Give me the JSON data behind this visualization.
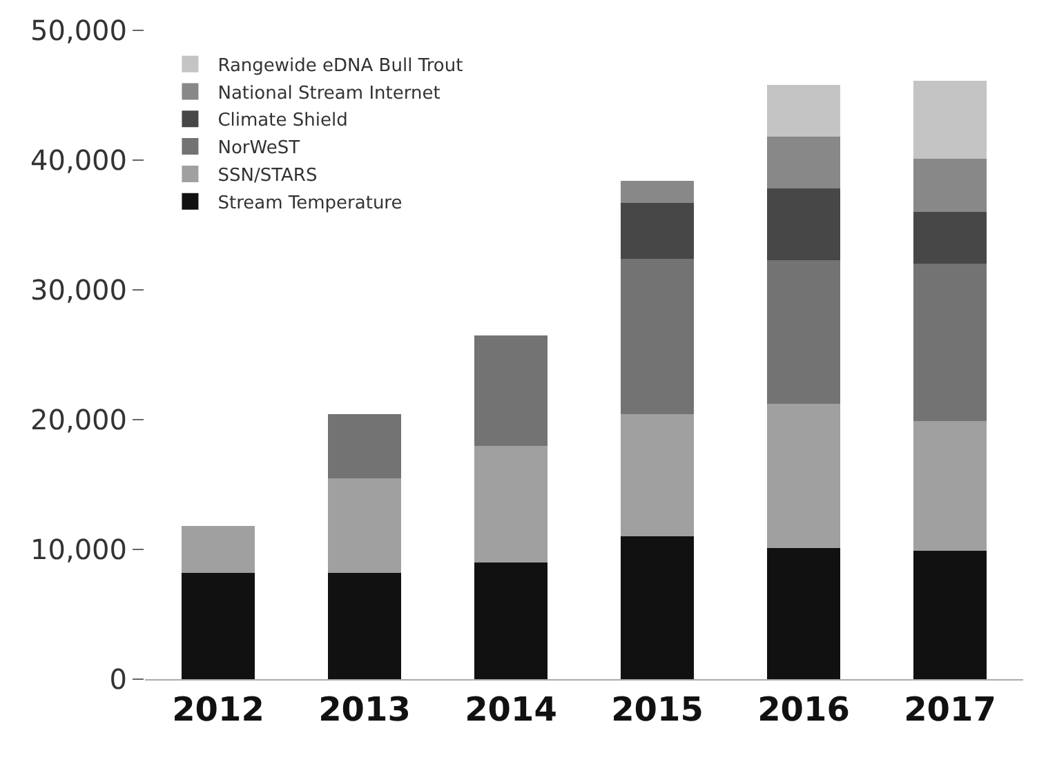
{
  "chart_data": {
    "type": "bar",
    "stacked": true,
    "categories": [
      "2012",
      "2013",
      "2014",
      "2015",
      "2016",
      "2017"
    ],
    "series": [
      {
        "name": "Stream Temperature",
        "color": "#111111",
        "values": [
          8200,
          8200,
          9000,
          11000,
          10100,
          9900
        ]
      },
      {
        "name": "SSN/STARS",
        "color": "#a0a0a0",
        "values": [
          3600,
          7300,
          9000,
          9400,
          11100,
          10000
        ]
      },
      {
        "name": "NorWeST",
        "color": "#737373",
        "values": [
          null,
          4900,
          8500,
          12000,
          11100,
          12100
        ]
      },
      {
        "name": "Climate Shield",
        "color": "#474747",
        "values": [
          null,
          null,
          null,
          4300,
          5500,
          4000
        ]
      },
      {
        "name": "National Stream Internet",
        "color": "#888888",
        "values": [
          null,
          null,
          null,
          1700,
          4000,
          4100
        ]
      },
      {
        "name": "Rangewide eDNA Bull Trout",
        "color": "#c4c4c4",
        "values": [
          null,
          null,
          null,
          null,
          4000,
          6000
        ]
      }
    ],
    "ylim": [
      0,
      50000
    ],
    "yticks": [
      {
        "value": 0,
        "label": "0"
      },
      {
        "value": 10000,
        "label": "10,000"
      },
      {
        "value": 20000,
        "label": "20,000"
      },
      {
        "value": 30000,
        "label": "30,000"
      },
      {
        "value": 40000,
        "label": "40,000"
      },
      {
        "value": 50000,
        "label": "50,000"
      }
    ],
    "legend": "top left"
  }
}
